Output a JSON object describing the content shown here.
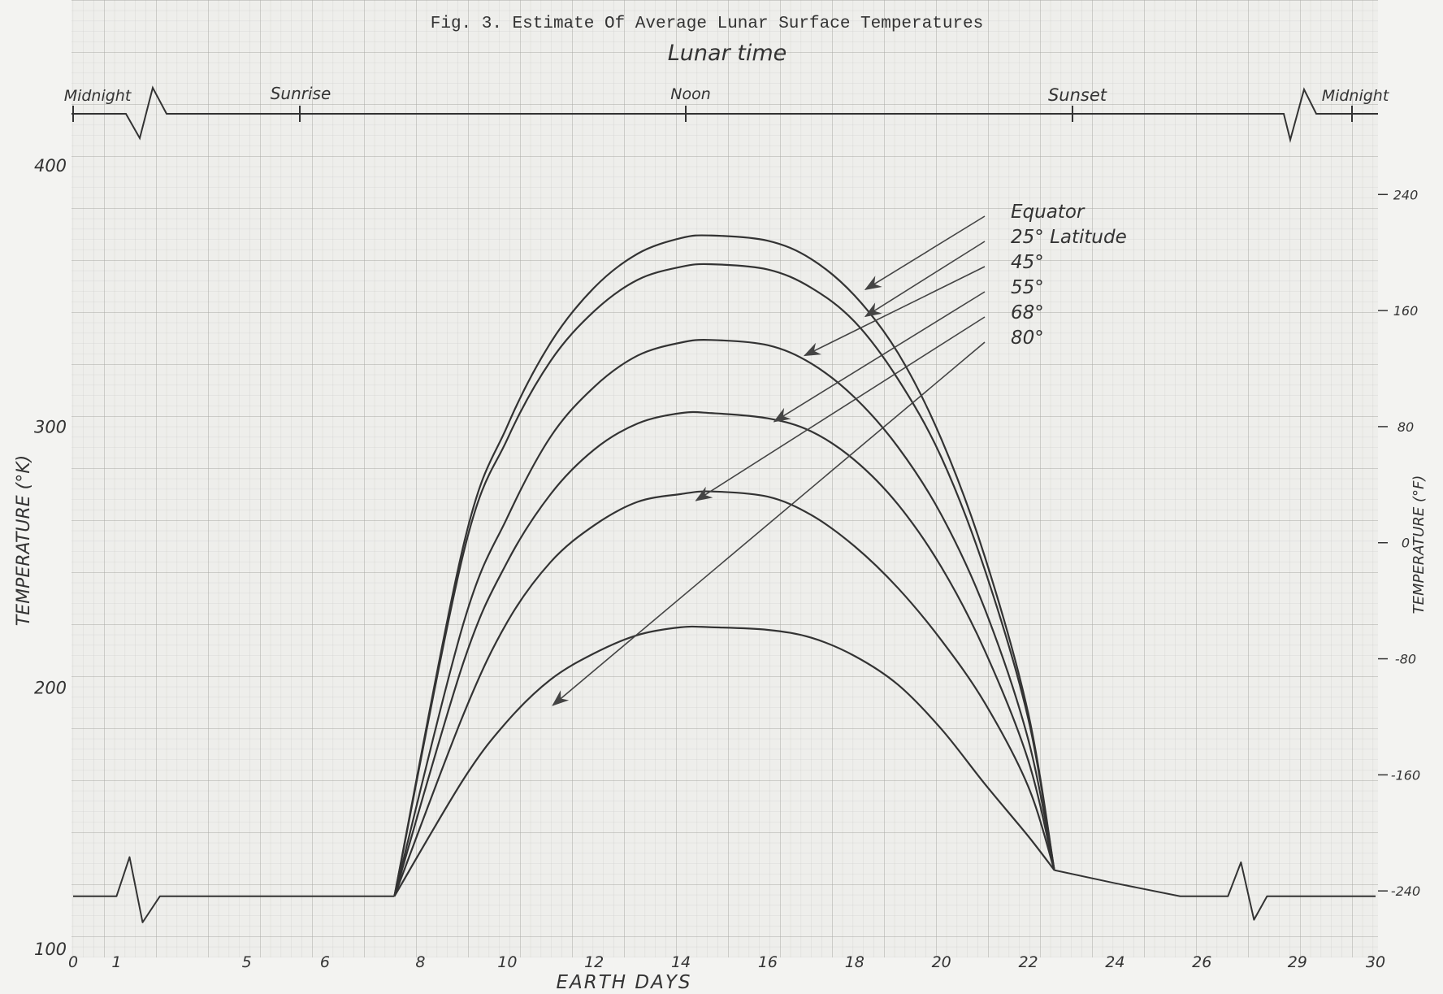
{
  "chart_data": {
    "type": "line",
    "title": "Fig. 3. Estimate Of Average Lunar Surface Temperatures",
    "subtitle": "Lunar time",
    "xlabel": "EARTH DAYS",
    "ylabel_left": "TEMPERATURE (°K)",
    "ylabel_right": "TEMPERATURE (°F)",
    "x_tick_labels": [
      "0",
      "1",
      "5",
      "6",
      "8",
      "10",
      "12",
      "14",
      "16",
      "18",
      "20",
      "22",
      "24",
      "26",
      "29",
      "30"
    ],
    "y_left_ticks": [
      "100",
      "200",
      "300",
      "400"
    ],
    "y_right_ticks": [
      "240",
      "160",
      "80",
      "0",
      "-80",
      "-160",
      "-240"
    ],
    "lunar_time_labels": [
      "Midnight",
      "Sunrise",
      "Noon",
      "Sunset",
      "Midnight"
    ],
    "ylim_left": [
      100,
      400
    ],
    "ylim_right": [
      -280,
      260
    ],
    "night_temperature_K": 120,
    "series": [
      {
        "name": "Equator",
        "x": [
          7.4,
          9,
          10,
          11,
          12,
          13,
          14,
          14.7,
          16,
          17,
          18,
          19,
          20,
          21,
          22,
          22.6
        ],
        "y": [
          120,
          255,
          300,
          332,
          353,
          366,
          372,
          373,
          371,
          364,
          350,
          328,
          295,
          250,
          190,
          130
        ]
      },
      {
        "name": "25° Latitude",
        "x": [
          7.4,
          9,
          10,
          11,
          12,
          13,
          14,
          14.7,
          16,
          17,
          18,
          19,
          20,
          21,
          22,
          22.6
        ],
        "y": [
          120,
          252,
          295,
          325,
          344,
          356,
          361,
          362,
          360,
          353,
          340,
          318,
          288,
          245,
          188,
          130
        ]
      },
      {
        "name": "45°",
        "x": [
          7.4,
          9,
          10,
          11,
          12,
          13,
          14,
          14.7,
          16,
          17,
          18,
          19,
          20,
          21,
          22,
          22.6
        ],
        "y": [
          120,
          225,
          265,
          296,
          315,
          327,
          332,
          333,
          331,
          324,
          311,
          292,
          266,
          230,
          180,
          130
        ]
      },
      {
        "name": "55°",
        "x": [
          7.4,
          9,
          10,
          11,
          12,
          13,
          14,
          14.7,
          16,
          17,
          18,
          19,
          20,
          21,
          22,
          22.6
        ],
        "y": [
          120,
          210,
          248,
          274,
          291,
          301,
          305,
          305,
          303,
          298,
          287,
          270,
          246,
          214,
          172,
          130
        ]
      },
      {
        "name": "68°",
        "x": [
          7.4,
          9,
          10,
          11,
          12,
          13,
          14,
          14.7,
          16,
          17,
          18,
          19,
          20,
          21,
          22,
          22.6
        ],
        "y": [
          120,
          190,
          225,
          248,
          262,
          271,
          274,
          275,
          273,
          266,
          254,
          238,
          218,
          194,
          162,
          130
        ]
      },
      {
        "name": "80°",
        "x": [
          7.4,
          9,
          10,
          11,
          12,
          13,
          14,
          14.7,
          16,
          17,
          18,
          19,
          20,
          21,
          22,
          22.6
        ],
        "y": [
          120,
          165,
          187,
          203,
          213,
          220,
          223,
          223,
          222,
          219,
          212,
          201,
          184,
          163,
          143,
          130
        ]
      },
      {
        "name": "",
        "x": [
          0,
          1,
          1.3,
          1.6,
          2,
          7.4
        ],
        "y": [
          120,
          120,
          135,
          110,
          120,
          120
        ]
      },
      {
        "name": "",
        "x": [
          22.6,
          24,
          25.5,
          26.6,
          26.9,
          27.2,
          27.5,
          30
        ],
        "y": [
          130,
          125,
          120,
          120,
          133,
          111,
          120,
          120
        ]
      }
    ],
    "grid": true
  }
}
